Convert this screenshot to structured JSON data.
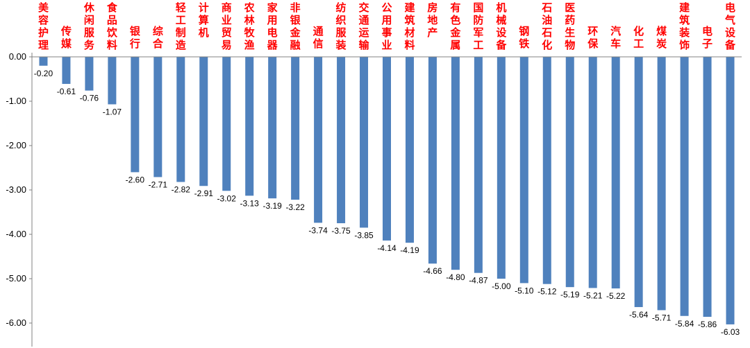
{
  "chart_data": {
    "type": "bar",
    "title": "",
    "xlabel": "",
    "ylabel": "",
    "ylim": [
      -6.0,
      0.0
    ],
    "yticks": [
      "0.00",
      "-1.00",
      "-2.00",
      "-3.00",
      "-4.00",
      "-5.00",
      "-6.00"
    ],
    "grid": false,
    "bar_color": "#4f81bd",
    "category_label_color": "#ff0000",
    "categories": [
      "美容护理",
      "传媒",
      "休闲服务",
      "食品饮料",
      "银行",
      "综合",
      "轻工制造",
      "计算机",
      "商业贸易",
      "农林牧渔",
      "家用电器",
      "非银金融",
      "通信",
      "纺织服装",
      "交通运输",
      "公用事业",
      "建筑材料",
      "房地产",
      "有色金属",
      "国防军工",
      "机械设备",
      "钢铁",
      "石油石化",
      "医药生物",
      "环保",
      "汽车",
      "化工",
      "煤炭",
      "建筑装饰",
      "电子",
      "电气设备"
    ],
    "values": [
      -0.2,
      -0.61,
      -0.76,
      -1.07,
      -2.6,
      -2.71,
      -2.82,
      -2.91,
      -3.02,
      -3.13,
      -3.19,
      -3.22,
      -3.74,
      -3.75,
      -3.85,
      -4.14,
      -4.19,
      -4.66,
      -4.8,
      -4.87,
      -5.0,
      -5.1,
      -5.12,
      -5.19,
      -5.21,
      -5.22,
      -5.64,
      -5.71,
      -5.84,
      -5.86,
      -6.03
    ],
    "data_labels": [
      "-0.20",
      "-0.61",
      "-0.76",
      "-1.07",
      "-2.60",
      "-2.71",
      "-2.82",
      "-2.91",
      "-3.02",
      "-3.13",
      "-3.19",
      "-3.22",
      "-3.74",
      "-3.75",
      "-3.85",
      "-4.14",
      "-4.19",
      "-4.66",
      "-4.80",
      "-4.87",
      "-5.00",
      "-5.10",
      "-5.12",
      "-5.19",
      "-5.21",
      "-5.22",
      "-5.64",
      "-5.71",
      "-5.84",
      "-5.86",
      "-6.03"
    ]
  }
}
